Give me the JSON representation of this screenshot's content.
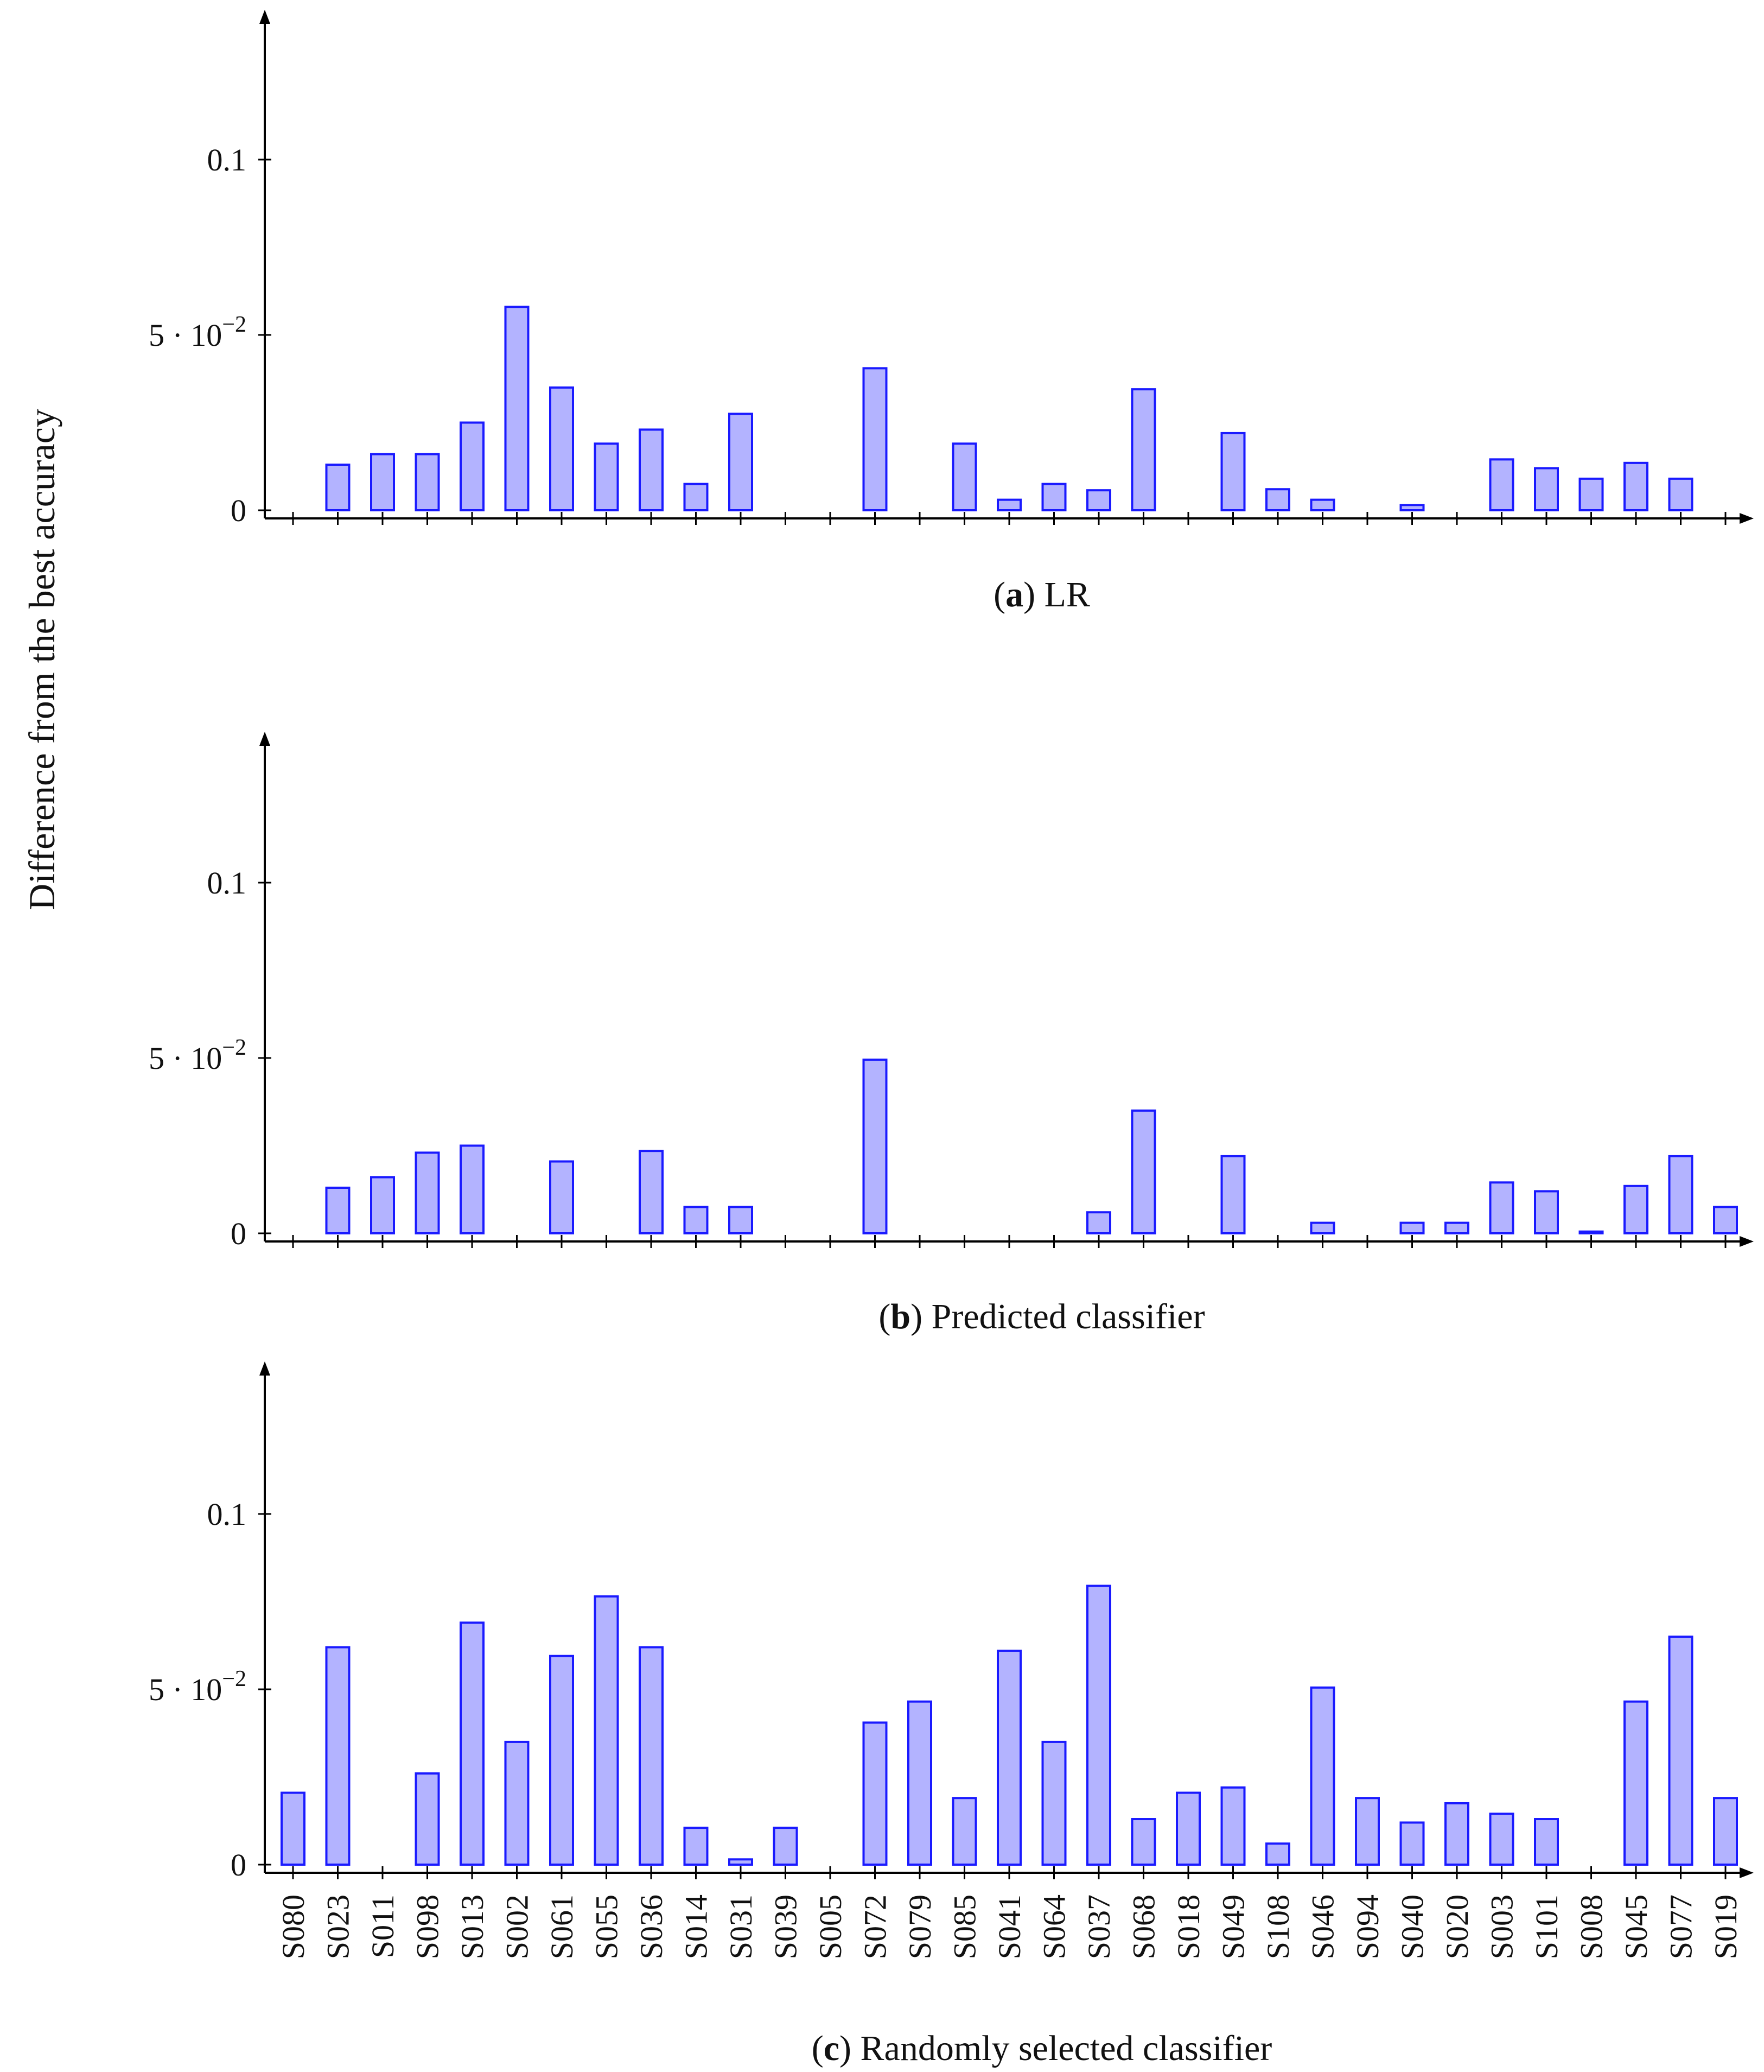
{
  "y_axis_label": "Difference from the best accuracy",
  "y_ticks": [
    {
      "value": 0,
      "label": "0"
    },
    {
      "value": 0.05,
      "label_base": "5 · 10",
      "label_exp": "−2"
    },
    {
      "value": 0.1,
      "label": "0.1"
    }
  ],
  "chart_data": [
    {
      "type": "bar",
      "id": "a",
      "caption_letter": "a",
      "caption_text": "LR",
      "categories": [
        "S080",
        "S023",
        "S011",
        "S098",
        "S013",
        "S002",
        "S061",
        "S055",
        "S036",
        "S014",
        "S031",
        "S039",
        "S005",
        "S072",
        "S079",
        "S085",
        "S041",
        "S064",
        "S037",
        "S068",
        "S018",
        "S049",
        "S108",
        "S046",
        "S094",
        "S040",
        "S020",
        "S003",
        "S101",
        "S008",
        "S045",
        "S077",
        "S019"
      ],
      "values": [
        0,
        0.013,
        0.016,
        0.016,
        0.025,
        0.058,
        0.035,
        0.019,
        0.023,
        0.0075,
        0.0275,
        0,
        0,
        0.0405,
        0,
        0.019,
        0.003,
        0.0075,
        0.0057,
        0.0345,
        0,
        0.022,
        0.006,
        0.003,
        0,
        0.0015,
        0,
        0.0145,
        0.012,
        0.009,
        0.0135,
        0.009,
        0
      ],
      "ylim": [
        0,
        0.14
      ],
      "xlabel": "",
      "ylabel": "Difference from the best accuracy"
    },
    {
      "type": "bar",
      "id": "b",
      "caption_letter": "b",
      "caption_text": "Predicted classifier",
      "categories": [
        "S080",
        "S023",
        "S011",
        "S098",
        "S013",
        "S002",
        "S061",
        "S055",
        "S036",
        "S014",
        "S031",
        "S039",
        "S005",
        "S072",
        "S079",
        "S085",
        "S041",
        "S064",
        "S037",
        "S068",
        "S018",
        "S049",
        "S108",
        "S046",
        "S094",
        "S040",
        "S020",
        "S003",
        "S101",
        "S008",
        "S045",
        "S077",
        "S019"
      ],
      "values": [
        0,
        0.013,
        0.016,
        0.023,
        0.025,
        0,
        0.0205,
        0,
        0.0235,
        0.0075,
        0.0075,
        0,
        0,
        0.0495,
        0,
        0,
        0,
        0,
        0.006,
        0.035,
        0,
        0.022,
        0,
        0.003,
        0,
        0.003,
        0.003,
        0.0145,
        0.012,
        0.0005,
        0.0135,
        0.022,
        0.0075
      ],
      "ylim": [
        0,
        0.14
      ],
      "xlabel": "",
      "ylabel": "Difference from the best accuracy"
    },
    {
      "type": "bar",
      "id": "c",
      "caption_letter": "c",
      "caption_text": "Randomly selected classifier",
      "categories": [
        "S080",
        "S023",
        "S011",
        "S098",
        "S013",
        "S002",
        "S061",
        "S055",
        "S036",
        "S014",
        "S031",
        "S039",
        "S005",
        "S072",
        "S079",
        "S085",
        "S041",
        "S064",
        "S037",
        "S068",
        "S018",
        "S049",
        "S108",
        "S046",
        "S094",
        "S040",
        "S020",
        "S003",
        "S101",
        "S008",
        "S045",
        "S077",
        "S019"
      ],
      "values": [
        0.0205,
        0.062,
        0,
        0.026,
        0.069,
        0.035,
        0.0595,
        0.0765,
        0.062,
        0.0105,
        0.0015,
        0.0105,
        0,
        0.0405,
        0.0465,
        0.019,
        0.061,
        0.035,
        0.0795,
        0.013,
        0.0205,
        0.022,
        0.006,
        0.0505,
        0.019,
        0.012,
        0.0175,
        0.0145,
        0.013,
        0,
        0.0465,
        0.065,
        0.019
      ],
      "ylim": [
        0,
        0.14
      ],
      "xlabel": "",
      "ylabel": "Difference from the best accuracy"
    }
  ]
}
